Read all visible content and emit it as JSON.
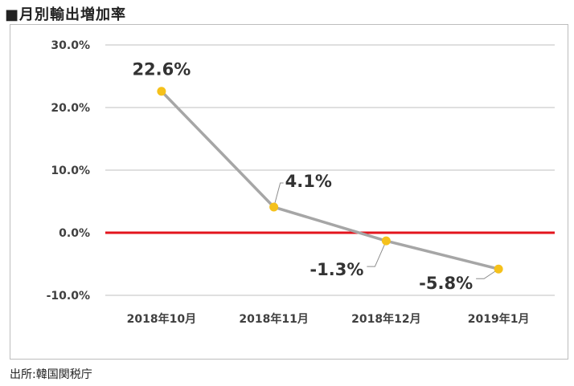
{
  "title": "■月別輸出増加率",
  "source": "出所:韓国関税庁",
  "colors": {
    "line": "#a6a6a6",
    "marker": "#f5c11b",
    "zero_line": "#e3141d",
    "grid": "#bfbfbf",
    "leader": "#8c8c8c"
  },
  "chart_data": {
    "type": "line",
    "title": "月別輸出増加率",
    "categories": [
      "2018年10月",
      "2018年11月",
      "2018年12月",
      "2019年1月"
    ],
    "values": [
      22.6,
      4.1,
      -1.3,
      -5.8
    ],
    "data_labels": [
      "22.6%",
      "4.1%",
      "-1.3%",
      "-5.8%"
    ],
    "ylim": [
      -10,
      30
    ],
    "yticks": [
      30,
      20,
      10,
      0,
      -10
    ],
    "ytick_labels": [
      "30.0%",
      "20.0%",
      "10.0%",
      "0.0%",
      "-10.0%"
    ],
    "xlabel": "",
    "ylabel": "",
    "grid": true,
    "reference_line": 0
  }
}
